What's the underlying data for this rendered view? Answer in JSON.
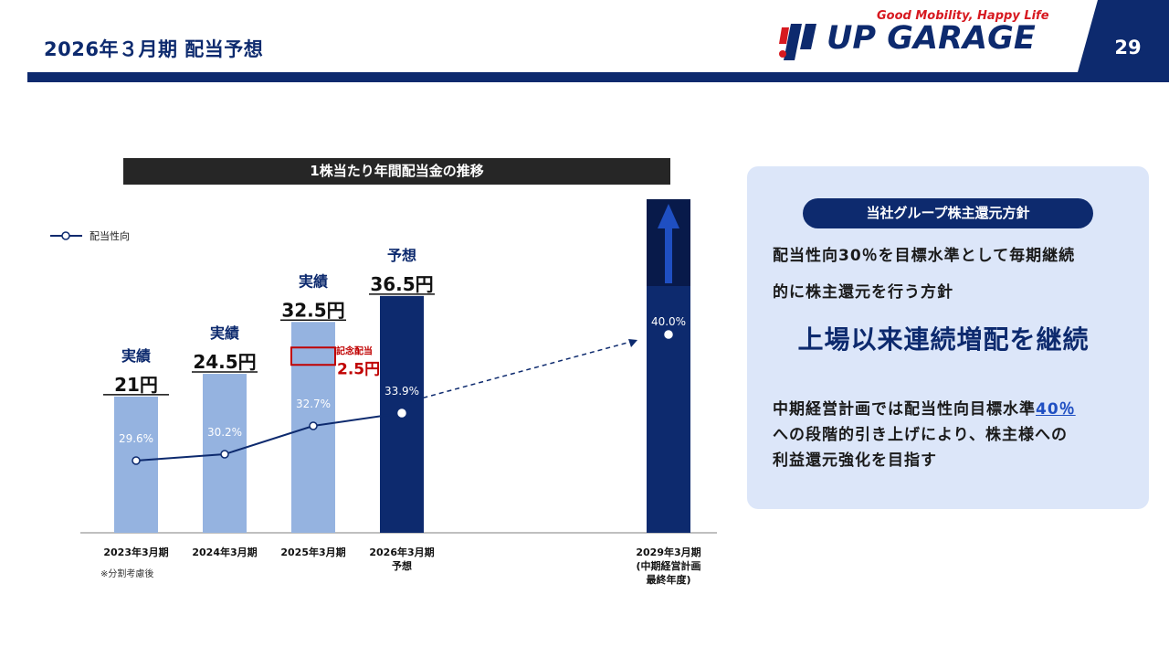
{
  "header": {
    "title": "2026年３月期 配当予想",
    "page_number": "29"
  },
  "logo": {
    "tagline": "Good Mobility, Happy Life",
    "brand": "UP GARAGE"
  },
  "chart_data": {
    "type": "bar",
    "title": "1株当たり年間配当金の推移",
    "legend": "配当性向",
    "categories": [
      "2023年3月期",
      "2024年3月期",
      "2025年3月期",
      "2026年3月期\n予想",
      "2029年3月期\n(中期経営計画\n最終年度)"
    ],
    "dividend": {
      "values": [
        21,
        24.5,
        32.5,
        36.5,
        null
      ],
      "labels": [
        "21円",
        "24.5円",
        "32.5円",
        "36.5円",
        ""
      ]
    },
    "status_labels": [
      "実績",
      "実績",
      "実績",
      "予想",
      ""
    ],
    "payout_ratio": {
      "name": "配当性向",
      "values": [
        29.6,
        30.2,
        32.7,
        33.9,
        40.0
      ],
      "labels": [
        "29.6%",
        "30.2%",
        "32.7%",
        "33.9%",
        "40.0%"
      ]
    },
    "commemorative": {
      "label": "記念配当",
      "value_label": "2.5円",
      "value": 2.5
    },
    "note": "※分割考慮後",
    "colors": {
      "actual": "#95b3e0",
      "forecast": "#0d2a6e",
      "line": "#0d2a6e",
      "commemorative": "#c00000"
    }
  },
  "panel": {
    "badge": "当社グループ株主還元方針",
    "line1": "配当性向30％を目標水準として毎期継続",
    "line2": "的に株主還元を行う方針",
    "headline": "上場以来連続増配を継続",
    "para_a": "中期経営計画では配当性向目標水準",
    "para_highlight": "40％",
    "para_b": "への段階的引き上げにより、株主様への",
    "para_c": "利益還元強化を目指す"
  }
}
